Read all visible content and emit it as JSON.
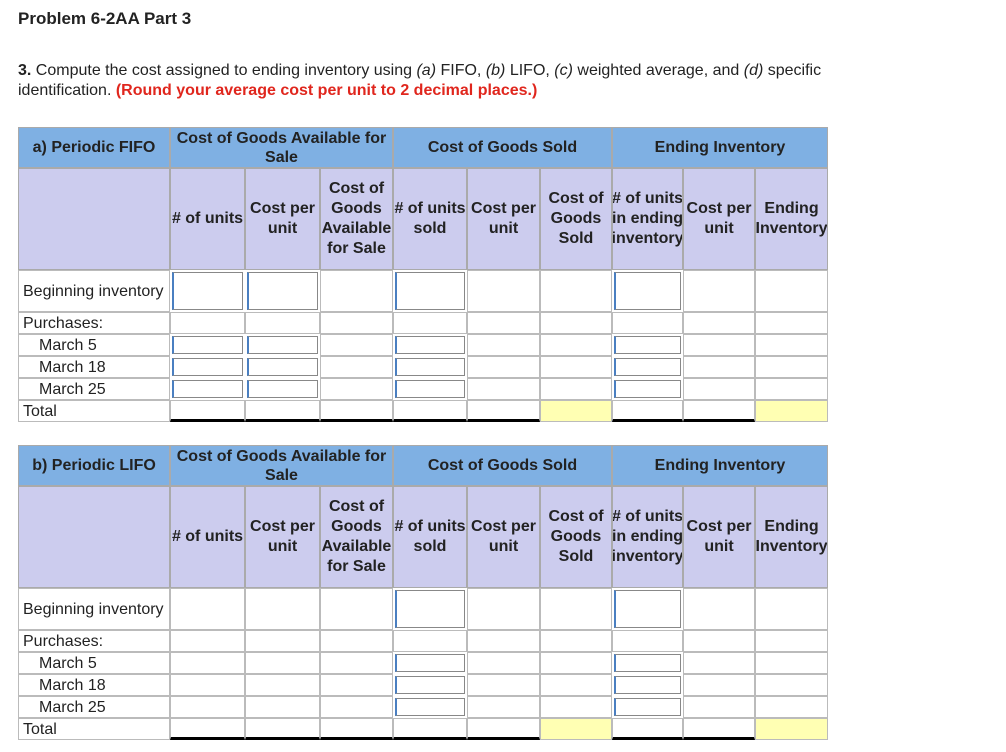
{
  "header": {
    "title": "Problem 6-2AA Part 3"
  },
  "instructions": {
    "segments": [
      "3.",
      " Compute the cost assigned to ending inventory using ",
      "(a)",
      " FIFO, ",
      "(b)",
      " LIFO, ",
      "(c)",
      " weighted average, and ",
      "(d)",
      " specific identification. ",
      "(Round your average cost per unit to 2 decimal places.)"
    ]
  },
  "tables": [
    {
      "title": "a) Periodic FIFO",
      "groups": [
        "Cost of Goods Available for Sale",
        "Cost of Goods Sold",
        "Ending Inventory"
      ],
      "columns": [
        "# of units",
        "Cost per unit",
        "Cost of Goods Available for Sale",
        "# of units sold",
        "Cost per unit",
        "Cost of Goods Sold",
        "# of units in ending inventory",
        "Cost per unit",
        "Ending Inventory"
      ],
      "rows": [
        "Beginning inventory",
        "Purchases:",
        "March 5",
        "March 18",
        "March 25",
        "Total"
      ]
    },
    {
      "title": "b) Periodic LIFO",
      "groups": [
        "Cost of Goods Available for Sale",
        "Cost of Goods Sold",
        "Ending Inventory"
      ],
      "columns": [
        "# of units",
        "Cost per unit",
        "Cost of Goods Available for Sale",
        "# of units sold",
        "Cost per unit",
        "Cost of Goods Sold",
        "# of units in ending inventory",
        "Cost per unit",
        "Ending Inventory"
      ],
      "rows": [
        "Beginning inventory",
        "Purchases:",
        "March 5",
        "March 18",
        "March 25",
        "Total"
      ]
    }
  ]
}
